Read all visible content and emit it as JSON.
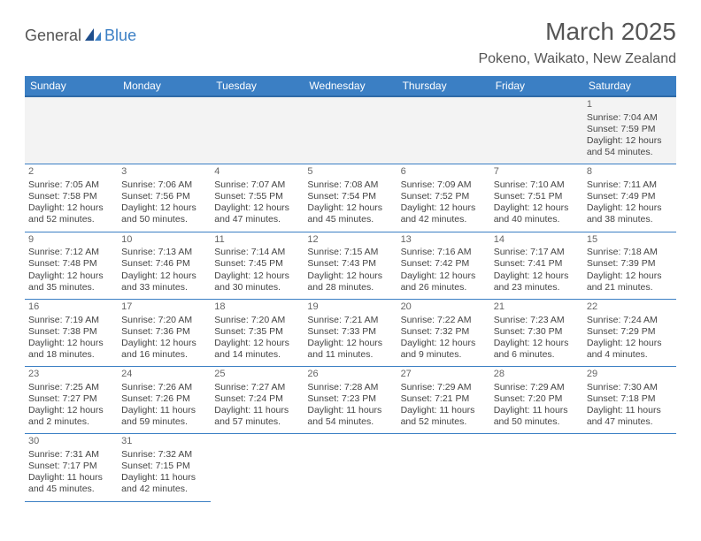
{
  "brand": {
    "text1": "General",
    "text2": "Blue"
  },
  "title": "March 2025",
  "location": "Pokeno, Waikato, New Zealand",
  "header_bg": "#3b7fc4",
  "weekdays": [
    "Sunday",
    "Monday",
    "Tuesday",
    "Wednesday",
    "Thursday",
    "Friday",
    "Saturday"
  ],
  "first_weekday_index": 6,
  "days": [
    {
      "n": 1,
      "sunrise": "7:04 AM",
      "sunset": "7:59 PM",
      "daylight": "12 hours and 54 minutes."
    },
    {
      "n": 2,
      "sunrise": "7:05 AM",
      "sunset": "7:58 PM",
      "daylight": "12 hours and 52 minutes."
    },
    {
      "n": 3,
      "sunrise": "7:06 AM",
      "sunset": "7:56 PM",
      "daylight": "12 hours and 50 minutes."
    },
    {
      "n": 4,
      "sunrise": "7:07 AM",
      "sunset": "7:55 PM",
      "daylight": "12 hours and 47 minutes."
    },
    {
      "n": 5,
      "sunrise": "7:08 AM",
      "sunset": "7:54 PM",
      "daylight": "12 hours and 45 minutes."
    },
    {
      "n": 6,
      "sunrise": "7:09 AM",
      "sunset": "7:52 PM",
      "daylight": "12 hours and 42 minutes."
    },
    {
      "n": 7,
      "sunrise": "7:10 AM",
      "sunset": "7:51 PM",
      "daylight": "12 hours and 40 minutes."
    },
    {
      "n": 8,
      "sunrise": "7:11 AM",
      "sunset": "7:49 PM",
      "daylight": "12 hours and 38 minutes."
    },
    {
      "n": 9,
      "sunrise": "7:12 AM",
      "sunset": "7:48 PM",
      "daylight": "12 hours and 35 minutes."
    },
    {
      "n": 10,
      "sunrise": "7:13 AM",
      "sunset": "7:46 PM",
      "daylight": "12 hours and 33 minutes."
    },
    {
      "n": 11,
      "sunrise": "7:14 AM",
      "sunset": "7:45 PM",
      "daylight": "12 hours and 30 minutes."
    },
    {
      "n": 12,
      "sunrise": "7:15 AM",
      "sunset": "7:43 PM",
      "daylight": "12 hours and 28 minutes."
    },
    {
      "n": 13,
      "sunrise": "7:16 AM",
      "sunset": "7:42 PM",
      "daylight": "12 hours and 26 minutes."
    },
    {
      "n": 14,
      "sunrise": "7:17 AM",
      "sunset": "7:41 PM",
      "daylight": "12 hours and 23 minutes."
    },
    {
      "n": 15,
      "sunrise": "7:18 AM",
      "sunset": "7:39 PM",
      "daylight": "12 hours and 21 minutes."
    },
    {
      "n": 16,
      "sunrise": "7:19 AM",
      "sunset": "7:38 PM",
      "daylight": "12 hours and 18 minutes."
    },
    {
      "n": 17,
      "sunrise": "7:20 AM",
      "sunset": "7:36 PM",
      "daylight": "12 hours and 16 minutes."
    },
    {
      "n": 18,
      "sunrise": "7:20 AM",
      "sunset": "7:35 PM",
      "daylight": "12 hours and 14 minutes."
    },
    {
      "n": 19,
      "sunrise": "7:21 AM",
      "sunset": "7:33 PM",
      "daylight": "12 hours and 11 minutes."
    },
    {
      "n": 20,
      "sunrise": "7:22 AM",
      "sunset": "7:32 PM",
      "daylight": "12 hours and 9 minutes."
    },
    {
      "n": 21,
      "sunrise": "7:23 AM",
      "sunset": "7:30 PM",
      "daylight": "12 hours and 6 minutes."
    },
    {
      "n": 22,
      "sunrise": "7:24 AM",
      "sunset": "7:29 PM",
      "daylight": "12 hours and 4 minutes."
    },
    {
      "n": 23,
      "sunrise": "7:25 AM",
      "sunset": "7:27 PM",
      "daylight": "12 hours and 2 minutes."
    },
    {
      "n": 24,
      "sunrise": "7:26 AM",
      "sunset": "7:26 PM",
      "daylight": "11 hours and 59 minutes."
    },
    {
      "n": 25,
      "sunrise": "7:27 AM",
      "sunset": "7:24 PM",
      "daylight": "11 hours and 57 minutes."
    },
    {
      "n": 26,
      "sunrise": "7:28 AM",
      "sunset": "7:23 PM",
      "daylight": "11 hours and 54 minutes."
    },
    {
      "n": 27,
      "sunrise": "7:29 AM",
      "sunset": "7:21 PM",
      "daylight": "11 hours and 52 minutes."
    },
    {
      "n": 28,
      "sunrise": "7:29 AM",
      "sunset": "7:20 PM",
      "daylight": "11 hours and 50 minutes."
    },
    {
      "n": 29,
      "sunrise": "7:30 AM",
      "sunset": "7:18 PM",
      "daylight": "11 hours and 47 minutes."
    },
    {
      "n": 30,
      "sunrise": "7:31 AM",
      "sunset": "7:17 PM",
      "daylight": "11 hours and 45 minutes."
    },
    {
      "n": 31,
      "sunrise": "7:32 AM",
      "sunset": "7:15 PM",
      "daylight": "11 hours and 42 minutes."
    }
  ],
  "labels": {
    "sunrise": "Sunrise:",
    "sunset": "Sunset:",
    "daylight": "Daylight:"
  }
}
